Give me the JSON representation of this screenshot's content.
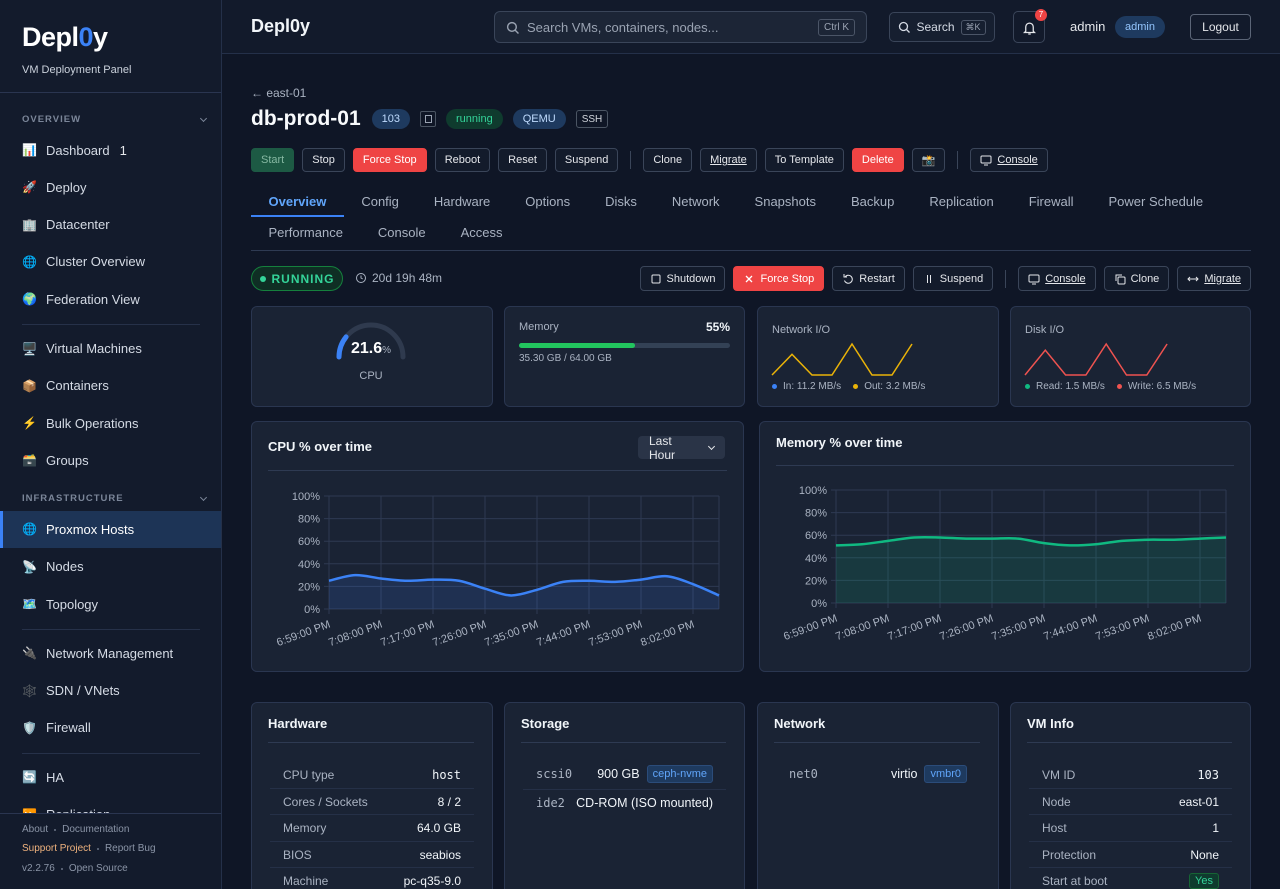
{
  "sidebar": {
    "brand": [
      "Depl",
      "0",
      "y"
    ],
    "subtitle": "VM Deployment Panel",
    "sections": [
      {
        "title": "OVERVIEW",
        "groups": [
          [
            {
              "icon": "📊",
              "label": "Dashboard",
              "badge": "1"
            },
            {
              "icon": "🚀",
              "label": "Deploy"
            },
            {
              "icon": "🏢",
              "label": "Datacenter"
            },
            {
              "icon": "🌐",
              "label": "Cluster Overview"
            },
            {
              "icon": "🌍",
              "label": "Federation View"
            }
          ],
          [
            {
              "icon": "🖥️",
              "label": "Virtual Machines"
            },
            {
              "icon": "📦",
              "label": "Containers"
            },
            {
              "icon": "⚡",
              "label": "Bulk Operations"
            },
            {
              "icon": "🗃️",
              "label": "Groups"
            }
          ]
        ]
      },
      {
        "title": "INFRASTRUCTURE",
        "groups": [
          [
            {
              "icon": "🌐",
              "label": "Proxmox Hosts",
              "active": true
            },
            {
              "icon": "📡",
              "label": "Nodes"
            },
            {
              "icon": "🗺️",
              "label": "Topology"
            }
          ],
          [
            {
              "icon": "🔌",
              "label": "Network Management"
            },
            {
              "icon": "🕸️",
              "label": "SDN / VNets"
            },
            {
              "icon": "🛡️",
              "label": "Firewall"
            }
          ],
          [
            {
              "icon": "🔄",
              "label": "HA"
            },
            {
              "icon": "⏩",
              "label": "Replication"
            }
          ]
        ]
      }
    ],
    "footer": [
      [
        "About",
        "Documentation"
      ],
      [
        "Support Project",
        "Report Bug"
      ],
      [
        "v2.2.76",
        "Open Source"
      ]
    ]
  },
  "topbar": {
    "title": "Depl0y",
    "search_placeholder": "Search VMs, containers, nodes...",
    "search_shortcut": "Ctrl K",
    "search_button": "Search",
    "search_button_key": "⌘K",
    "notifications": "7",
    "user": "admin",
    "role": "admin",
    "logout": "Logout"
  },
  "vm": {
    "breadcrumb": "← east-01",
    "name": "db-prod-01",
    "badges": [
      {
        "text": "103",
        "kind": "id"
      },
      {
        "text": "running",
        "kind": "ok"
      },
      {
        "text": "QEMU",
        "kind": "id"
      },
      {
        "text": "SSH",
        "kind": "outline"
      }
    ],
    "actions": [
      [
        {
          "label": "Start",
          "kind": "start"
        },
        {
          "label": "Stop"
        },
        {
          "label": "Force Stop",
          "kind": "danger"
        },
        {
          "label": "Reboot"
        },
        {
          "label": "Reset"
        },
        {
          "label": "Suspend"
        }
      ],
      [
        {
          "label": "Clone"
        },
        {
          "label": "Migrate",
          "underline": true
        },
        {
          "label": "To Template"
        },
        {
          "label": "Delete",
          "kind": "danger"
        },
        {
          "label": "📸"
        }
      ],
      [
        {
          "label": "Console",
          "icon": "monitor",
          "underline": true
        }
      ]
    ],
    "tabs": [
      "Overview",
      "Config",
      "Hardware",
      "Options",
      "Disks",
      "Network",
      "Snapshots",
      "Backup",
      "Replication",
      "Firewall",
      "Power Schedule",
      "Performance",
      "Console",
      "Access"
    ],
    "active_tab": 0,
    "status": {
      "state": "RUNNING",
      "uptime": "20d 19h 48m",
      "actions": [
        [
          {
            "label": "Shutdown",
            "icon": "square"
          },
          {
            "label": "Force Stop",
            "icon": "x",
            "kind": "danger"
          },
          {
            "label": "Restart",
            "icon": "restart"
          },
          {
            "label": "Suspend",
            "icon": "pause"
          }
        ],
        [
          {
            "label": "Console",
            "icon": "monitor",
            "underline": true
          },
          {
            "label": "Clone",
            "icon": "copy"
          },
          {
            "label": "Migrate",
            "icon": "arrows",
            "underline": true
          }
        ]
      ]
    }
  },
  "cpu": {
    "value": 21.6,
    "unit": "%",
    "label": "CPU",
    "color": "#3b82f6"
  },
  "memory": {
    "label": "Memory",
    "value": 55,
    "value_label": "55%",
    "detail": "35.30 GB / 64.00 GB",
    "color": "#22c55e"
  },
  "network_io": {
    "label": "Network I/O",
    "values": [
      0,
      2,
      0,
      0,
      3,
      0,
      0,
      3
    ],
    "color": "#eab308",
    "legend": [
      {
        "text": "In: 11.2 MB/s",
        "color": "#3b82f6"
      },
      {
        "text": "Out: 3.2 MB/s",
        "color": "#eab308"
      }
    ]
  },
  "disk_io": {
    "label": "Disk I/O",
    "values": [
      0,
      2.4,
      0,
      0,
      3,
      0,
      0,
      3
    ],
    "color": "#ef5350",
    "legend": [
      {
        "text": "Read: 1.5 MB/s",
        "color": "#10b981"
      },
      {
        "text": "Write: 6.5 MB/s",
        "color": "#ef5350"
      }
    ]
  },
  "cpu_chart": {
    "type": "line",
    "title": "CPU % over time",
    "range_select": "Last Hour",
    "color": "#3b82f6",
    "categories": [
      "6:59:00 PM",
      null,
      "7:08:00 PM",
      null,
      "7:17:00 PM",
      null,
      "7:26:00 PM",
      null,
      "7:35:00 PM",
      null,
      "7:44:00 PM",
      null,
      "7:53:00 PM",
      null,
      "8:02:00 PM",
      null
    ],
    "values": [
      25,
      30,
      27,
      25,
      26,
      25,
      18,
      12,
      17,
      24,
      25,
      24,
      26,
      29,
      22,
      12
    ],
    "ylim": [
      0,
      100
    ],
    "yticks": [
      {
        "value": 0,
        "label": "0%"
      },
      {
        "value": 20,
        "label": "20%"
      },
      {
        "value": 40,
        "label": "40%"
      },
      {
        "value": 60,
        "label": "60%"
      },
      {
        "value": 80,
        "label": "80%"
      },
      {
        "value": 100,
        "label": "100%"
      }
    ],
    "grid": true
  },
  "memory_chart": {
    "type": "line",
    "title": "Memory % over time",
    "color": "#10b981",
    "categories": [
      "6:59:00 PM",
      null,
      "7:08:00 PM",
      null,
      "7:17:00 PM",
      null,
      "7:26:00 PM",
      null,
      "7:35:00 PM",
      null,
      "7:44:00 PM",
      null,
      "7:53:00 PM",
      null,
      "8:02:00 PM",
      null
    ],
    "values": [
      51,
      52,
      55,
      58,
      58,
      57,
      57,
      57,
      53,
      51,
      52,
      55,
      56,
      56,
      57,
      58
    ],
    "ylim": [
      0,
      100
    ],
    "yticks": [
      {
        "value": 0,
        "label": "0%"
      },
      {
        "value": 20,
        "label": "20%"
      },
      {
        "value": 40,
        "label": "40%"
      },
      {
        "value": 60,
        "label": "60%"
      },
      {
        "value": 80,
        "label": "80%"
      },
      {
        "value": 100,
        "label": "100%"
      }
    ],
    "grid": true
  },
  "hardware": {
    "title": "Hardware",
    "rows": [
      {
        "label": "CPU type",
        "value": "host",
        "mono": true
      },
      {
        "label": "Cores / Sockets",
        "value": "8 / 2"
      },
      {
        "label": "Memory",
        "value": "64.0 GB"
      },
      {
        "label": "BIOS",
        "value": "seabios"
      },
      {
        "label": "Machine",
        "value": "pc-q35-9.0"
      }
    ]
  },
  "storage": {
    "title": "Storage",
    "rows": [
      {
        "device": "scsi0",
        "value": "900 GB",
        "tag": "ceph-nvme"
      },
      {
        "device": "ide2",
        "value": "CD-ROM (ISO mounted)"
      }
    ]
  },
  "network": {
    "title": "Network",
    "rows": [
      {
        "device": "net0",
        "value": "virtio",
        "tag": "vmbr0"
      }
    ]
  },
  "vm_info": {
    "title": "VM Info",
    "rows": [
      {
        "label": "VM ID",
        "value": "103",
        "mono": true
      },
      {
        "label": "Node",
        "value": "east-01"
      },
      {
        "label": "Host",
        "value": "1"
      },
      {
        "label": "Protection",
        "value": "None"
      },
      {
        "label": "Start at boot",
        "value": "Yes",
        "tag": true
      }
    ]
  }
}
